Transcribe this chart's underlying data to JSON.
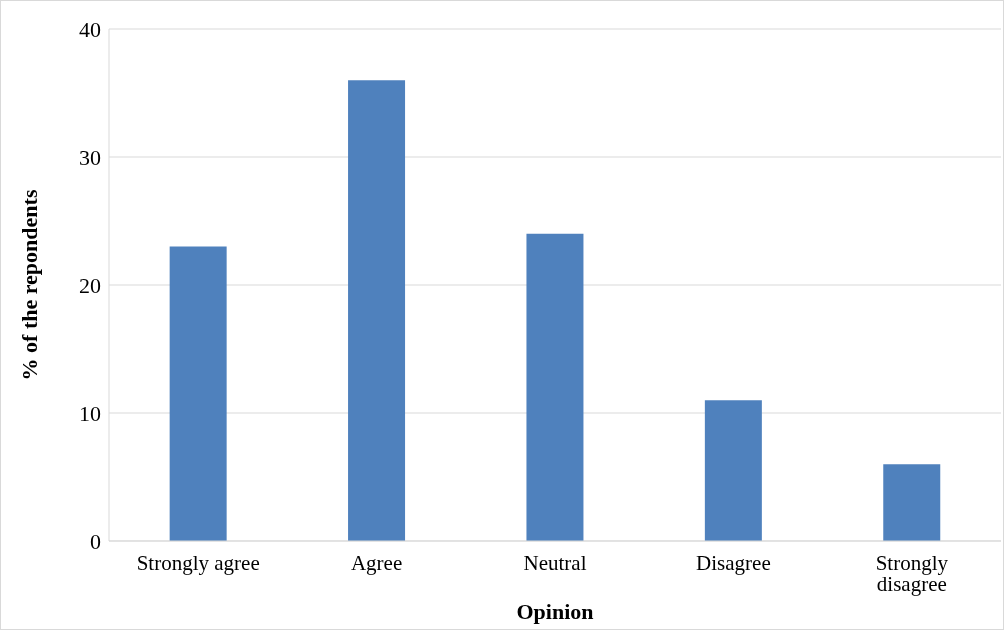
{
  "chart_data": {
    "type": "bar",
    "xlabel": "Opinion",
    "ylabel": "% of the repondents",
    "categories": [
      "Strongly agree",
      "Agree",
      "Neutral",
      "Disagree",
      "Strongly disagree"
    ],
    "values": [
      23,
      36,
      24,
      11,
      6
    ],
    "color": "#4f81bd",
    "ylim": [
      0,
      40
    ],
    "yticks": [
      0,
      10,
      20,
      30,
      40
    ],
    "grid": "y"
  }
}
